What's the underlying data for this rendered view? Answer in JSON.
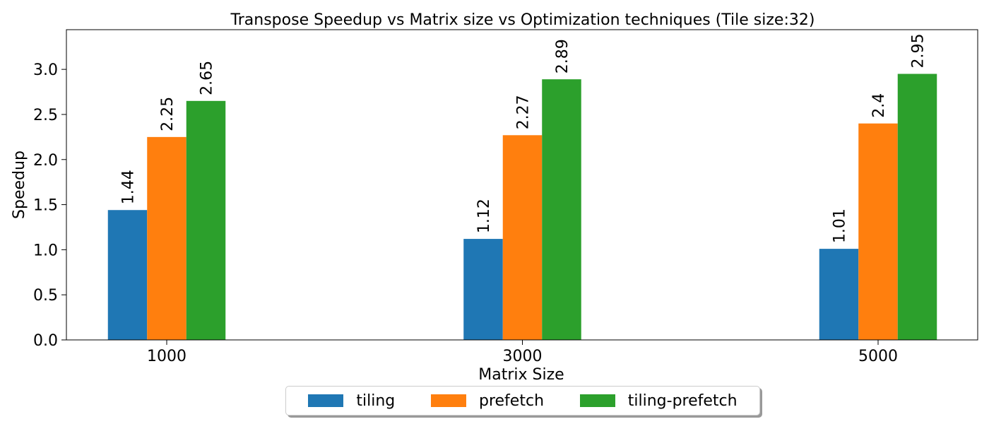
{
  "chart_data": {
    "type": "bar",
    "title": "Transpose Speedup vs Matrix size vs Optimization techniques (Tile size:32)",
    "xlabel": "Matrix Size",
    "ylabel": "Speedup",
    "categories": [
      "1000",
      "3000",
      "5000"
    ],
    "series": [
      {
        "name": "tiling",
        "color": "#1f77b4",
        "values": [
          1.44,
          1.12,
          1.01
        ],
        "labels": [
          "1.44",
          "1.12",
          "1.01"
        ]
      },
      {
        "name": "prefetch",
        "color": "#ff7f0e",
        "values": [
          2.25,
          2.27,
          2.4
        ],
        "labels": [
          "2.25",
          "2.27",
          "2.4"
        ]
      },
      {
        "name": "tiling-prefetch",
        "color": "#2ca02c",
        "values": [
          2.65,
          2.89,
          2.95
        ],
        "labels": [
          "2.65",
          "2.89",
          "2.95"
        ]
      }
    ],
    "ylim": [
      0,
      3.44
    ],
    "yticks": [
      "0.0",
      "0.5",
      "1.0",
      "1.5",
      "2.0",
      "2.5",
      "3.0"
    ],
    "grid": false,
    "legend_position": "bottom-center"
  }
}
